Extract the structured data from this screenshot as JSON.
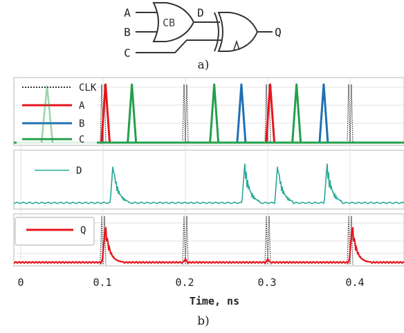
{
  "circuit": {
    "inputs": [
      "A",
      "B",
      "C"
    ],
    "gate1_label": "CB",
    "intermediate": "D",
    "output": "Q",
    "caption": "a)"
  },
  "timing": {
    "caption": "b)",
    "xlabel": "Time, ns",
    "x_ticks": [
      "0",
      "0.1",
      "0.2",
      "0.3",
      "0.4"
    ],
    "colors": {
      "CLK": "#333333",
      "A": "#e8141b",
      "B": "#1f6fb5",
      "C": "#22a04a",
      "D": "#26a896",
      "Q": "#e8141b"
    },
    "panels": [
      {
        "id": "inputs",
        "legend": [
          "CLK",
          "A",
          "B",
          "C"
        ]
      },
      {
        "id": "d",
        "legend": [
          "D"
        ]
      },
      {
        "id": "q",
        "legend": [
          "Q"
        ]
      }
    ]
  },
  "chart_data": {
    "type": "line",
    "xlabel": "Time, ns",
    "xlim": [
      0,
      0.45
    ],
    "series": [
      {
        "name": "CLK",
        "pulse_times": [
          0.1,
          0.2,
          0.3,
          0.4
        ]
      },
      {
        "name": "A",
        "pulse_times": [
          0.103,
          0.303
        ]
      },
      {
        "name": "B",
        "pulse_times": [
          0.268,
          0.368
        ]
      },
      {
        "name": "C",
        "pulse_times": [
          0.135,
          0.235,
          0.335
        ]
      },
      {
        "name": "D",
        "pulse_times": [
          0.112,
          0.272,
          0.312,
          0.372
        ]
      },
      {
        "name": "Q",
        "pulse_times": [
          0.103,
          0.403
        ]
      }
    ]
  }
}
